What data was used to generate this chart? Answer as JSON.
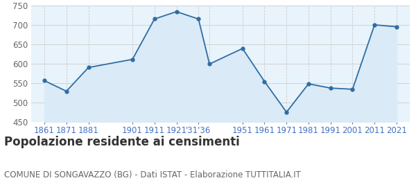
{
  "years": [
    1861,
    1871,
    1881,
    1901,
    1911,
    1921,
    1931,
    1936,
    1951,
    1961,
    1971,
    1981,
    1991,
    2001,
    2011,
    2021
  ],
  "population": [
    557,
    530,
    591,
    612,
    716,
    735,
    716,
    600,
    640,
    555,
    476,
    549,
    538,
    535,
    701,
    696
  ],
  "x_tick_positions": [
    1861,
    1871,
    1881,
    1901,
    1911,
    1921,
    1931,
    1951,
    1961,
    1971,
    1981,
    1991,
    2001,
    2011,
    2021
  ],
  "x_tick_labels": [
    "1861",
    "1871",
    "1881",
    "1901",
    "1911",
    "1921",
    "'31'36",
    "1951",
    "1961",
    "1971",
    "1981",
    "1991",
    "2001",
    "2011",
    "2021"
  ],
  "xlim": [
    1855,
    2027
  ],
  "ylim": [
    450,
    750
  ],
  "yticks": [
    450,
    500,
    550,
    600,
    650,
    700,
    750
  ],
  "line_color": "#2e6da4",
  "fill_color": "#daeaf6",
  "marker_color": "#2e6da4",
  "grid_color": "#cccccc",
  "background_color": "#ffffff",
  "plot_bg_color": "#e8f3fb",
  "title": "Popolazione residente ai censimenti",
  "subtitle": "COMUNE DI SONGAVAZZO (BG) - Dati ISTAT - Elaborazione TUTTITALIA.IT",
  "title_fontsize": 12,
  "subtitle_fontsize": 8.5,
  "tick_label_color": "#4472c4",
  "y_tick_label_color": "#666666",
  "tick_label_fontsize": 8.5
}
